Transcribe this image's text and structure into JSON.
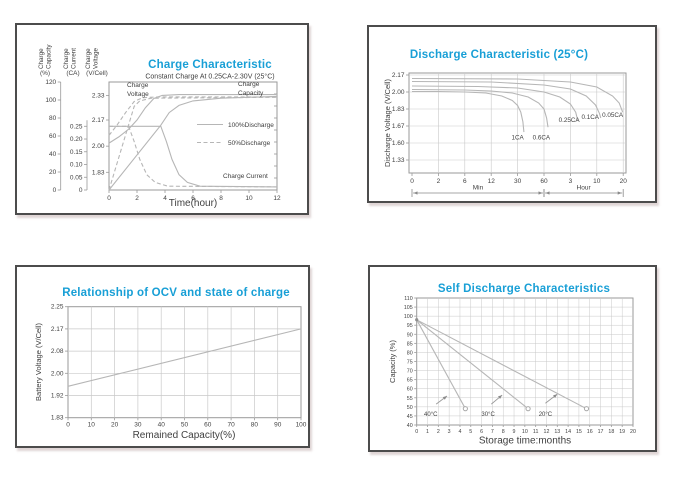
{
  "colors": {
    "title": "#189fd6",
    "curve": "#b6b6b6",
    "grid": "#c9c9c9",
    "axis": "#9a9a9a",
    "text": "#3f3f3f",
    "panel_border": "#4c4c4c"
  },
  "chart_data": [
    {
      "type": "line",
      "title": "Charge Characteristic",
      "subtitle": "Constant Charge At 0.25CA-2.30V  (25°C)",
      "xlabel": "Time(hour)",
      "xlim": [
        0,
        12
      ],
      "x_ticks": [
        0,
        2,
        4,
        6,
        8,
        10,
        12
      ],
      "y_axes": [
        {
          "name": [
            "Charge",
            "Capacity"
          ],
          "unit": "(%)",
          "ticks": [
            "0",
            "20",
            "40",
            "60",
            "80",
            "100",
            "120"
          ],
          "tick_values": [
            0,
            20,
            40,
            60,
            80,
            100,
            120
          ],
          "map": {
            "v0": 0,
            "v1": 120,
            "f0": 0,
            "f1": 1
          }
        },
        {
          "name": [
            "Charge",
            "Current"
          ],
          "unit": "(CA)",
          "ticks": [
            "0",
            "0.05",
            "0.10",
            "0.15",
            "0.20",
            "0.25"
          ],
          "tick_values": [
            0,
            0.05,
            0.1,
            0.15,
            0.2,
            0.25
          ],
          "map": {
            "v0": 0,
            "v1": 0.25,
            "f0": 0,
            "f1": 0.59
          }
        },
        {
          "name": [
            "Charge",
            "Voltage"
          ],
          "unit": "(V/Cell)",
          "ticks": [
            "1.83",
            "2.00",
            "2.17",
            "2.33"
          ],
          "tick_values": [
            1.83,
            2.0,
            2.17,
            2.33
          ],
          "map": {
            "v0": 1.715,
            "v1": 2.33,
            "f0": 0,
            "f1": 0.876
          }
        }
      ],
      "legend": [
        {
          "label": "100%Discharge",
          "dash": false
        },
        {
          "label": "50%Discharge",
          "dash": true
        }
      ],
      "annotations": [
        {
          "lines": [
            "Charge",
            "Voltage"
          ],
          "x": 110,
          "y": 62
        },
        {
          "lines": [
            "Charge",
            "Capacity"
          ],
          "x": 221,
          "y": 61
        },
        {
          "lines": [
            "Charge Current"
          ],
          "x": 206,
          "y": 153
        }
      ],
      "series": [
        {
          "name": "charge-voltage-100pct",
          "scale": 2,
          "dash": false,
          "points": [
            [
              0,
              2.02
            ],
            [
              0.7,
              2.06
            ],
            [
              1.4,
              2.11
            ],
            [
              2,
              2.17
            ],
            [
              2.6,
              2.25
            ],
            [
              3.2,
              2.31
            ],
            [
              3.8,
              2.33
            ],
            [
              5,
              2.335
            ],
            [
              12,
              2.335
            ]
          ]
        },
        {
          "name": "charge-voltage-50pct",
          "scale": 2,
          "dash": true,
          "points": [
            [
              0,
              2.07
            ],
            [
              0.6,
              2.14
            ],
            [
              1.2,
              2.22
            ],
            [
              1.8,
              2.29
            ],
            [
              2.4,
              2.315
            ],
            [
              3.5,
              2.32
            ],
            [
              12,
              2.32
            ]
          ]
        },
        {
          "name": "charge-capacity-100pct",
          "scale": 0,
          "dash": false,
          "points": [
            [
              0,
              0
            ],
            [
              3.7,
              72
            ],
            [
              4.3,
              86
            ],
            [
              5,
              94
            ],
            [
              6,
              99
            ],
            [
              8,
              102
            ],
            [
              12,
              104
            ]
          ]
        },
        {
          "name": "charge-capacity-50pct",
          "scale": 0,
          "dash": true,
          "points": [
            [
              0,
              0
            ],
            [
              1.8,
              93
            ],
            [
              2.2,
              99
            ],
            [
              3,
              102
            ],
            [
              12,
              103
            ]
          ]
        },
        {
          "name": "charge-current-100pct",
          "scale": 1,
          "dash": false,
          "points": [
            [
              0,
              0.25
            ],
            [
              3.7,
              0.25
            ],
            [
              4.1,
              0.19
            ],
            [
              4.5,
              0.12
            ],
            [
              5,
              0.06
            ],
            [
              5.6,
              0.03
            ],
            [
              6.5,
              0.015
            ],
            [
              12,
              0.012
            ]
          ]
        },
        {
          "name": "charge-current-50pct",
          "scale": 1,
          "dash": true,
          "points": [
            [
              0,
              0.25
            ],
            [
              1.4,
              0.25
            ],
            [
              1.8,
              0.19
            ],
            [
              2.2,
              0.12
            ],
            [
              2.7,
              0.06
            ],
            [
              3.3,
              0.03
            ],
            [
              4.2,
              0.015
            ],
            [
              12,
              0.012
            ]
          ]
        }
      ]
    },
    {
      "type": "line",
      "title": "Discharge Characteristic  (25°C)",
      "ylabel": "Discharge Voltage (V/Cell)",
      "y_ticks": [
        "2.17",
        "2.00",
        "1.83",
        "1.67",
        "1.60",
        "1.33"
      ],
      "y_tick_values": [
        2.17,
        2.0,
        1.83,
        1.67,
        1.6,
        1.33
      ],
      "x_ticks": [
        "0",
        "2",
        "6",
        "12",
        "30",
        "60",
        "3",
        "10",
        "20"
      ],
      "x_ranges": [
        {
          "label": "Min",
          "from": 0,
          "to": 5
        },
        {
          "label": "Hour",
          "from": 5,
          "to": 8
        }
      ],
      "series": [
        {
          "name": "discharge-1ca",
          "points": [
            [
              0,
              2.005
            ],
            [
              1,
              2.005
            ],
            [
              2,
              2.0
            ],
            [
              2.8,
              1.99
            ],
            [
              3.4,
              1.96
            ],
            [
              3.8,
              1.915
            ],
            [
              4.0,
              1.865
            ],
            [
              4.12,
              1.8
            ],
            [
              4.2,
              1.71
            ],
            [
              4.24,
              1.645
            ]
          ]
        },
        {
          "name": "discharge-0.6ca",
          "points": [
            [
              0,
              2.025
            ],
            [
              2,
              2.02
            ],
            [
              3,
              2.01
            ],
            [
              3.8,
              1.99
            ],
            [
              4.4,
              1.95
            ],
            [
              4.8,
              1.89
            ],
            [
              5.0,
              1.83
            ],
            [
              5.1,
              1.745
            ],
            [
              5.15,
              1.665
            ]
          ]
        },
        {
          "name": "discharge-0.25ca",
          "points": [
            [
              0,
              2.06
            ],
            [
              2.5,
              2.055
            ],
            [
              4,
              2.04
            ],
            [
              5,
              2.0
            ],
            [
              5.6,
              1.95
            ],
            [
              6.0,
              1.88
            ],
            [
              6.2,
              1.8
            ],
            [
              6.28,
              1.72
            ]
          ]
        },
        {
          "name": "discharge-0.1ca",
          "points": [
            [
              0,
              2.105
            ],
            [
              3,
              2.1
            ],
            [
              5,
              2.07
            ],
            [
              6,
              2.03
            ],
            [
              6.6,
              1.96
            ],
            [
              6.95,
              1.87
            ],
            [
              7.1,
              1.79
            ],
            [
              7.15,
              1.745
            ]
          ]
        },
        {
          "name": "discharge-0.05ca",
          "points": [
            [
              0,
              2.135
            ],
            [
              4,
              2.13
            ],
            [
              6,
              2.1
            ],
            [
              7,
              2.05
            ],
            [
              7.6,
              1.96
            ],
            [
              7.85,
              1.89
            ],
            [
              7.98,
              1.8
            ]
          ]
        }
      ],
      "series_labels": [
        {
          "text": "1CA",
          "x": 4.0,
          "v": 1.615
        },
        {
          "text": "0.6CA",
          "x": 4.9,
          "v": 1.615
        },
        {
          "text": "0.25CA",
          "x": 5.95,
          "v": 1.71
        },
        {
          "text": "0.1CA",
          "x": 6.75,
          "v": 1.735
        },
        {
          "text": "0.05CA",
          "x": 7.6,
          "v": 1.755
        }
      ]
    },
    {
      "type": "line",
      "title": "Relationship of OCV and state of charge",
      "ylabel": "Battery Voltage (V/Cell)",
      "xlabel": "Remained Capacity(%)",
      "y_ticks": [
        "2.25",
        "2.17",
        "2.08",
        "2.00",
        "1.92",
        "1.83"
      ],
      "y_tick_values": [
        2.25,
        2.17,
        2.08,
        2.0,
        1.92,
        1.83
      ],
      "x_ticks": [
        0,
        10,
        20,
        30,
        40,
        50,
        60,
        70,
        80,
        90,
        100
      ],
      "series": [
        {
          "name": "ocv-line",
          "points": [
            [
              0,
              1.953
            ],
            [
              100,
              2.17
            ]
          ]
        }
      ]
    },
    {
      "type": "line",
      "title": "Self Discharge Characteristics",
      "ylabel": "Capacity (%)",
      "xlabel": "Storage time:months",
      "ylim": [
        40,
        110
      ],
      "y_ticks": [
        "110",
        "105",
        "100",
        "95",
        "90",
        "85",
        "80",
        "75",
        "70",
        "65",
        "60",
        "55",
        "50",
        "45",
        "40"
      ],
      "y_tick_values": [
        110,
        105,
        100,
        95,
        90,
        85,
        80,
        75,
        70,
        65,
        60,
        55,
        50,
        45,
        40
      ],
      "x_ticks": [
        0,
        1,
        2,
        3,
        4,
        5,
        6,
        7,
        8,
        9,
        10,
        11,
        12,
        13,
        14,
        15,
        16,
        17,
        18,
        19,
        20
      ],
      "series": [
        {
          "name": "self-discharge-40c",
          "label": "40°C",
          "points": [
            [
              0,
              98
            ],
            [
              4.5,
              49
            ]
          ]
        },
        {
          "name": "self-discharge-30c",
          "label": "30°C",
          "points": [
            [
              0,
              98
            ],
            [
              10.3,
              49
            ]
          ]
        },
        {
          "name": "self-discharge-20c",
          "label": "20°C",
          "points": [
            [
              0,
              98
            ],
            [
              15.7,
              49
            ]
          ]
        }
      ],
      "series_labels": [
        {
          "text": "40°C",
          "x": 1.3,
          "y": 46
        },
        {
          "text": "30°C",
          "x": 6.6,
          "y": 46
        },
        {
          "text": "20°C",
          "x": 11.9,
          "y": 46
        }
      ],
      "arrows": [
        {
          "x1": 1.8,
          "y1": 51.5,
          "x2": 2.8,
          "y2": 56
        },
        {
          "x1": 6.9,
          "y1": 51.5,
          "x2": 7.9,
          "y2": 56.5
        },
        {
          "x1": 11.9,
          "y1": 52,
          "x2": 13.0,
          "y2": 57
        }
      ]
    }
  ]
}
